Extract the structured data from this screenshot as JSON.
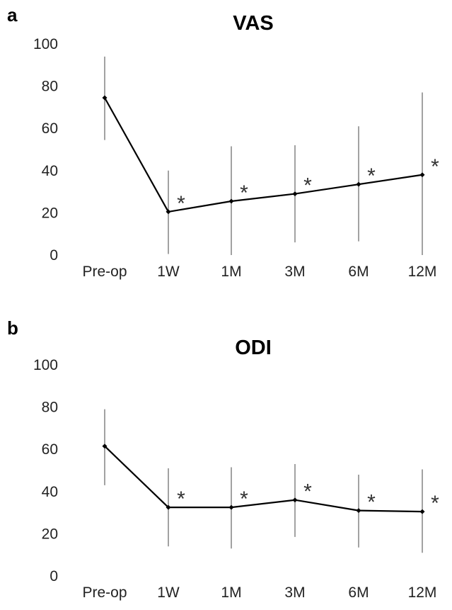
{
  "chart_data": [
    {
      "type": "line",
      "panel": "a",
      "title": "VAS",
      "categories": [
        "Pre-op",
        "1W",
        "1M",
        "3M",
        "6M",
        "12M"
      ],
      "series": [
        {
          "values": [
            74.5,
            20.5,
            25.5,
            29,
            33.5,
            38
          ],
          "error_low": [
            54.5,
            0.5,
            0,
            6,
            6.5,
            0
          ],
          "error_high": [
            94,
            40,
            51.5,
            52,
            61,
            77
          ]
        }
      ],
      "annotations": [
        "",
        "*",
        "*",
        "*",
        "*",
        "*"
      ],
      "ylim": [
        0,
        100
      ],
      "yticks": [
        0,
        20,
        40,
        60,
        80,
        100
      ],
      "grid": false,
      "xlabel": "",
      "ylabel": ""
    },
    {
      "type": "line",
      "panel": "b",
      "title": "ODI",
      "categories": [
        "Pre-op",
        "1W",
        "1M",
        "3M",
        "6M",
        "12M"
      ],
      "series": [
        {
          "values": [
            61.5,
            32.5,
            32.5,
            36,
            31,
            30.5
          ],
          "error_low": [
            43,
            14,
            13,
            18.5,
            13.5,
            11
          ],
          "error_high": [
            79,
            51,
            51.5,
            53,
            48,
            50.5
          ]
        }
      ],
      "annotations": [
        "",
        "*",
        "*",
        "*",
        "*",
        "*"
      ],
      "ylim": [
        0,
        100
      ],
      "yticks": [
        0,
        20,
        40,
        60,
        80,
        100
      ],
      "grid": false,
      "xlabel": "",
      "ylabel": ""
    }
  ]
}
